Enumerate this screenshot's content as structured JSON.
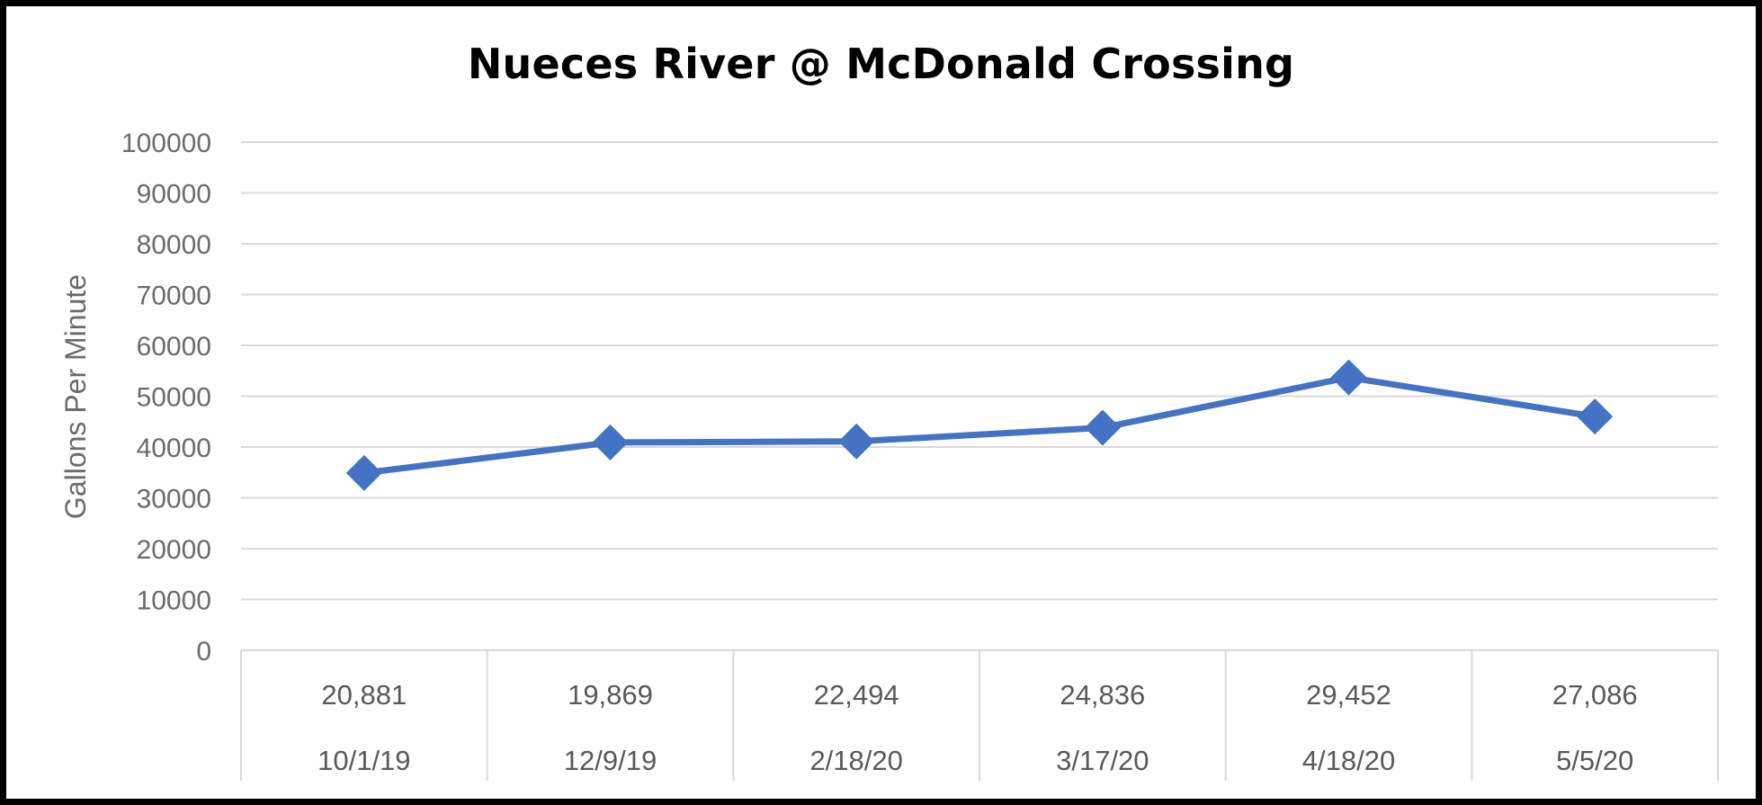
{
  "chart_data": {
    "type": "line",
    "title": "Nueces River @ McDonald Crossing",
    "ylabel": "Gallons Per Minute",
    "xlabel": "",
    "ylim": [
      0,
      100000
    ],
    "yticks": [
      0,
      10000,
      20000,
      30000,
      40000,
      50000,
      60000,
      70000,
      80000,
      90000,
      100000
    ],
    "grid": true,
    "categories": [
      "10/1/19",
      "12/9/19",
      "2/18/20",
      "3/17/20",
      "4/18/20",
      "5/5/20"
    ],
    "category_sublabels": [
      "20,881",
      "19,869",
      "22,494",
      "24,836",
      "29,452",
      "27,086"
    ],
    "series": [
      {
        "values": [
          34900,
          40900,
          41100,
          43800,
          53700,
          46000
        ],
        "color": "#4472C4",
        "marker": "diamond"
      }
    ]
  }
}
